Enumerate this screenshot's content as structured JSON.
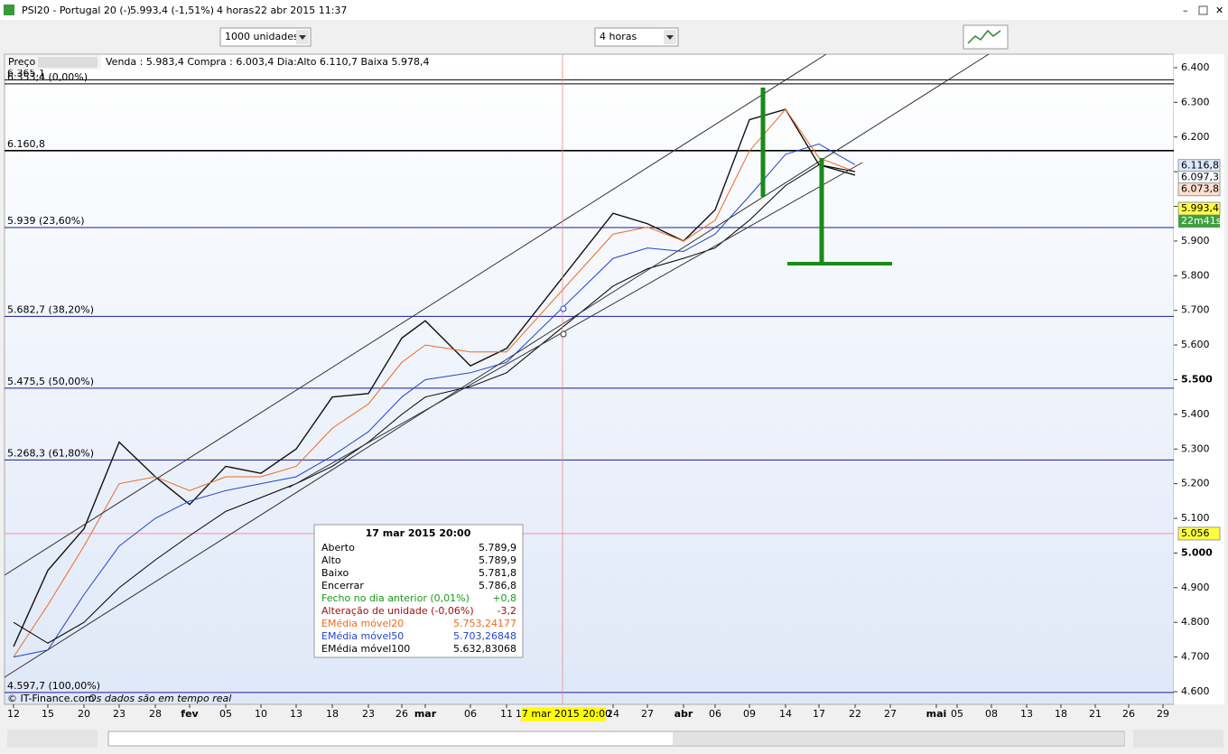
{
  "window": {
    "title": "PSI20 - Portugal 20 (-)",
    "quote": "5.993,4 (-1,51%)",
    "period": "4 horas",
    "datetime": "22 abr 2015 11:37"
  },
  "toolbar": {
    "quantity": "1000 unidades",
    "interval": "4 horas"
  },
  "chart_header": {
    "label": "Preço",
    "info": "Venda : 5.983,4 Compra : 6.003,4 Dia:Alto 6.110,7 Baixa 5.978,4"
  },
  "chart": {
    "type": "line",
    "crosshair": "17 mar 2015 20:00",
    "categories": [
      "12",
      "15",
      "20",
      "23",
      "28",
      "fev",
      "05",
      "10",
      "13",
      "18",
      "23",
      "26",
      "mar",
      "06",
      "11",
      "24",
      "27",
      "abr",
      "06",
      "09",
      "14",
      "17",
      "22",
      "27",
      "mai",
      "05",
      "08",
      "13",
      "18",
      "21",
      "26",
      "29"
    ],
    "ylim": [
      4563.5,
      6439
    ],
    "yticks": [
      {
        "value": 4600,
        "label": "4.600"
      },
      {
        "value": 4700,
        "label": "4.700"
      },
      {
        "value": 4800,
        "label": "4.800"
      },
      {
        "value": 4900,
        "label": "4.900"
      },
      {
        "value": 5000,
        "label": "5.000"
      },
      {
        "value": 5100,
        "label": "5.100"
      },
      {
        "value": 5200,
        "label": "5.200"
      },
      {
        "value": 5300,
        "label": "5.300"
      },
      {
        "value": 5400,
        "label": "5.400"
      },
      {
        "value": 5500,
        "label": "5.500"
      },
      {
        "value": 5600,
        "label": "5.600"
      },
      {
        "value": 5700,
        "label": "5.700"
      },
      {
        "value": 5800,
        "label": "5.800"
      },
      {
        "value": 5900,
        "label": "5.900"
      },
      {
        "value": 6000,
        "label": "6.000"
      },
      {
        "value": 6100,
        "label": "6.100"
      },
      {
        "value": 6200,
        "label": "6.200"
      },
      {
        "value": 6300,
        "label": "6.300"
      },
      {
        "value": 6400,
        "label": "6.400"
      }
    ],
    "series": [
      {
        "name": "Preço",
        "color": "#111111",
        "values": [
          4730,
          4950,
          5070,
          5320,
          5220,
          5140,
          5250,
          5230,
          5300,
          5450,
          5460,
          5620,
          5670,
          5540,
          5590,
          5980,
          5950,
          5900,
          5990,
          6250,
          6280,
          6120,
          6090,
          null,
          null,
          null,
          null,
          null,
          null,
          null,
          null,
          null
        ]
      },
      {
        "name": "EMédia móvel20",
        "color": "#f06a20",
        "values": [
          4700,
          4850,
          5020,
          5200,
          5220,
          5180,
          5220,
          5220,
          5250,
          5360,
          5430,
          5550,
          5600,
          5580,
          5580,
          5920,
          5940,
          5900,
          5960,
          6160,
          6280,
          6140,
          6100,
          null,
          null,
          null,
          null,
          null,
          null,
          null,
          null,
          null
        ]
      },
      {
        "name": "EMédia móvel50",
        "color": "#2244cc",
        "values": [
          4700,
          4720,
          4880,
          5020,
          5100,
          5150,
          5180,
          5200,
          5220,
          5280,
          5350,
          5450,
          5500,
          5520,
          5550,
          5850,
          5880,
          5870,
          5920,
          6030,
          6150,
          6180,
          6120,
          null,
          null,
          null,
          null,
          null,
          null,
          null,
          null,
          null
        ]
      },
      {
        "name": "EMédia móvel100",
        "color": "#000000",
        "values": [
          4800,
          4740,
          4800,
          4900,
          4980,
          5050,
          5120,
          5160,
          5200,
          5250,
          5320,
          5400,
          5450,
          5480,
          5520,
          5770,
          5820,
          5850,
          5880,
          5960,
          6060,
          6120,
          6100,
          null,
          null,
          null,
          null,
          null,
          null,
          null,
          null,
          null
        ]
      }
    ],
    "levels": [
      {
        "value": 6365.1,
        "label": "6.365,1",
        "color": "#000000"
      },
      {
        "value": 6353.4,
        "label": "6.353,4 (0,00%)",
        "color": "#000000"
      },
      {
        "value": 6160.8,
        "label": "6.160,8",
        "color": "#000000"
      },
      {
        "value": 5939,
        "label": "5.939 (23,60%)",
        "color": "#1a1aa0"
      },
      {
        "value": 5682.7,
        "label": "5.682,7 (38,20%)",
        "color": "#1a1aa0"
      },
      {
        "value": 5475.5,
        "label": "5.475,5 (50,00%)",
        "color": "#1a1aa0"
      },
      {
        "value": 5268.3,
        "label": "5.268,3 (61,80%)",
        "color": "#1a1aa0"
      },
      {
        "value": 4597.7,
        "label": "4.597,7 (100,00%)",
        "color": "#1a1aa0"
      },
      {
        "value": 5056,
        "label": "5.056",
        "color": "#ff9090",
        "tag": "#ffff40"
      }
    ],
    "price_tags": [
      {
        "value": 6116.8,
        "label": "6.116,8",
        "color": "#dde8ff"
      },
      {
        "value": 6097.3,
        "label": "6.097,3",
        "color": "#ffffff"
      },
      {
        "value": 6073.8,
        "label": "6.073,8",
        "color": "#ffe0d0"
      },
      {
        "value": 5993.4,
        "label": "5.993,4",
        "color": "#ffff40"
      }
    ],
    "countdown": "22m41s"
  },
  "tooltip": {
    "title": "17 mar 2015 20:00",
    "rows": [
      [
        "Aberto",
        "5.789,9",
        "#000000"
      ],
      [
        "Alto",
        "5.789,9",
        "#000000"
      ],
      [
        "Baixo",
        "5.781,8",
        "#000000"
      ],
      [
        "Encerrar",
        "5.786,8",
        "#000000"
      ],
      [
        "Fecho no dia anterior (0,01%)",
        "+0,8",
        "#1a9a1a"
      ],
      [
        "Alteração de unidade (-0,06%)",
        "-3,2",
        "#a01010"
      ],
      [
        "EMédia móvel20",
        "5.753,24177",
        "#f06a20"
      ],
      [
        "EMédia móvel50",
        "5.703,26848",
        "#2244cc"
      ],
      [
        "EMédia móvel100",
        "5.632,83068",
        "#000000"
      ]
    ]
  },
  "footer": {
    "copyright": "© IT-Finance.com",
    "realtime": "Os dados são em tempo real"
  }
}
